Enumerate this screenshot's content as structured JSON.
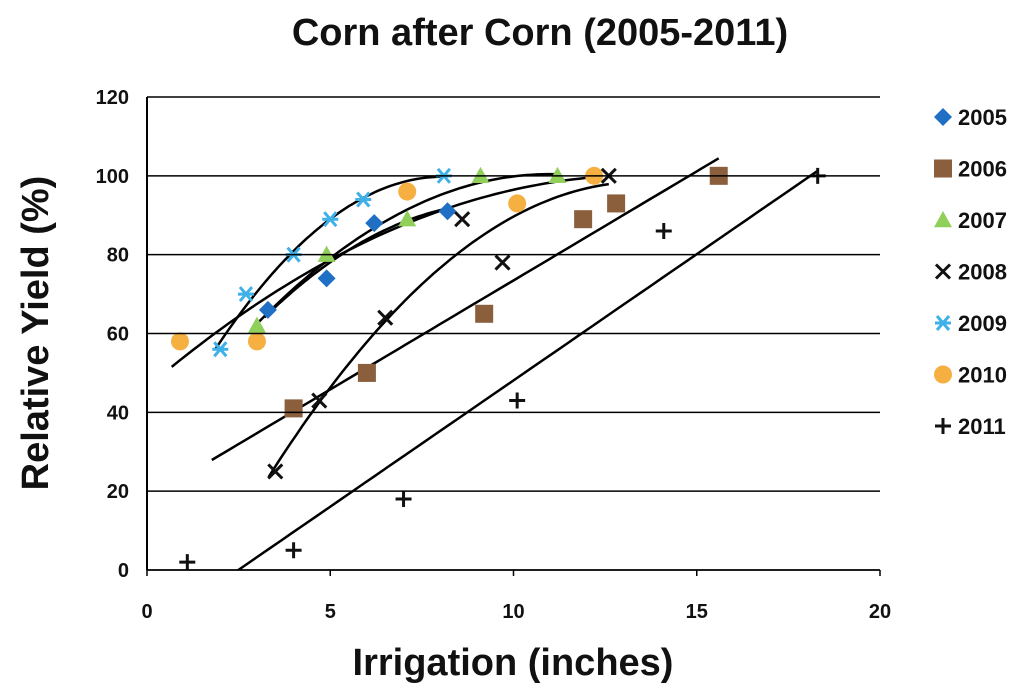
{
  "chart_data": {
    "type": "scatter",
    "title": "Corn after Corn (2005-2011)",
    "x_label": "Irrigation (inches)",
    "y_label": "Relative Yield (%)",
    "xlim": [
      0,
      20
    ],
    "xticks": [
      0,
      5,
      10,
      15,
      20
    ],
    "ylim": [
      0,
      120
    ],
    "yticks": [
      0,
      20,
      40,
      60,
      80,
      100,
      120
    ],
    "grid": "y",
    "legend": "right",
    "series": [
      {
        "name": "2005",
        "color": "#1f6fc5",
        "marker": "diamond",
        "trendline": "quadratic",
        "x": [
          3.3,
          4.9,
          6.2,
          8.2
        ],
        "values": [
          66,
          74,
          88,
          91
        ]
      },
      {
        "name": "2006",
        "color": "#8b5e3c",
        "marker": "square",
        "trendline": "linear",
        "x": [
          4.0,
          6.0,
          9.2,
          11.9,
          12.8,
          15.6
        ],
        "values": [
          41,
          50,
          65,
          89,
          93,
          100
        ]
      },
      {
        "name": "2007",
        "color": "#8fcf5a",
        "marker": "triangle",
        "trendline": "quadratic",
        "x": [
          3.0,
          4.9,
          7.1,
          9.1,
          11.2
        ],
        "values": [
          62,
          80,
          89,
          100,
          100
        ]
      },
      {
        "name": "2008",
        "color": "#111111",
        "marker": "x",
        "trendline": "quadratic",
        "x": [
          3.5,
          4.7,
          6.5,
          8.6,
          9.7,
          12.6
        ],
        "values": [
          25,
          43,
          64,
          89,
          78,
          100
        ]
      },
      {
        "name": "2009",
        "color": "#3fb0e8",
        "marker": "asterisk",
        "trendline": "quadratic",
        "x": [
          2.0,
          2.7,
          4.0,
          5.0,
          5.9,
          8.1
        ],
        "values": [
          56,
          70,
          80,
          89,
          94,
          100
        ]
      },
      {
        "name": "2010",
        "color": "#f5b041",
        "marker": "circle",
        "trendline": "quadratic",
        "x": [
          0.9,
          3.0,
          7.1,
          10.1,
          12.2
        ],
        "values": [
          58,
          58,
          96,
          93,
          100
        ]
      },
      {
        "name": "2011",
        "color": "#111111",
        "marker": "plus",
        "trendline": "linear",
        "x": [
          1.1,
          4.0,
          7.0,
          10.1,
          14.1,
          18.3
        ],
        "values": [
          2,
          5,
          18,
          43,
          86,
          100
        ]
      }
    ]
  }
}
